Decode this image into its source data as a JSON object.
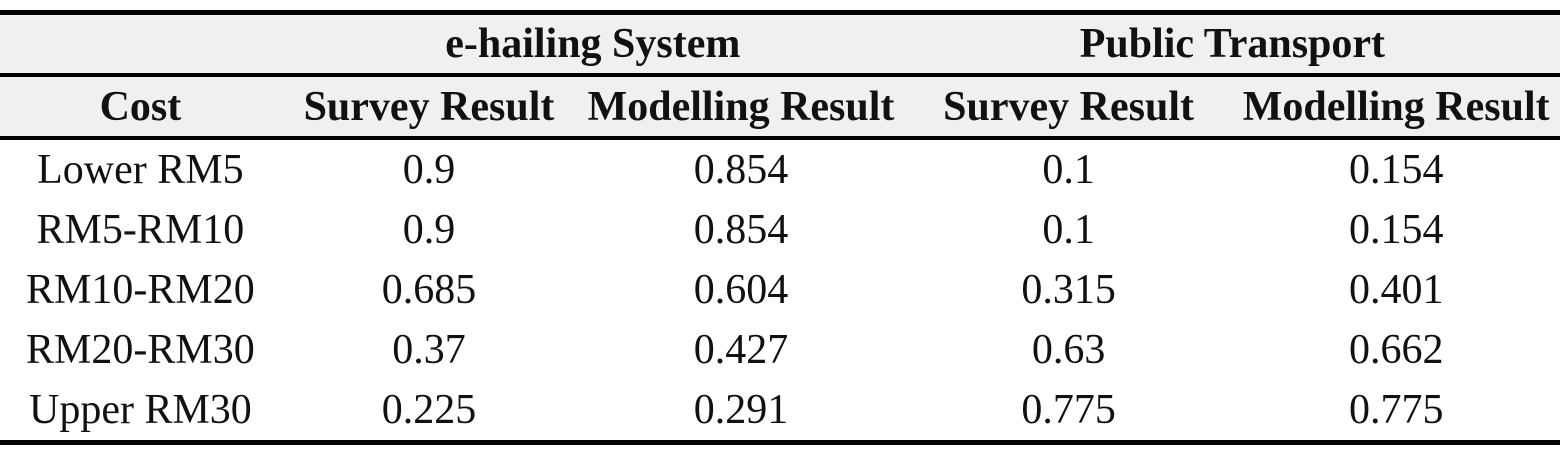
{
  "table": {
    "group_headers": {
      "empty": "",
      "ehailing": "e-hailing System",
      "public_transport": "Public Transport"
    },
    "column_headers": [
      "Cost",
      "Survey Result",
      "Modelling Result",
      "Survey Result",
      "Modelling Result"
    ],
    "rows": [
      [
        "Lower RM5",
        "0.9",
        "0.854",
        "0.1",
        "0.154"
      ],
      [
        "RM5-RM10",
        "0.9",
        "0.854",
        "0.1",
        "0.154"
      ],
      [
        "RM10-RM20",
        "0.685",
        "0.604",
        "0.315",
        "0.401"
      ],
      [
        "RM20-RM30",
        "0.37",
        "0.427",
        "0.63",
        "0.662"
      ],
      [
        "Upper RM30",
        "0.225",
        "0.291",
        "0.775",
        "0.775"
      ]
    ],
    "colors": {
      "header_bg": "#f0f0f0",
      "rule": "#000000",
      "text": "#111111",
      "page_bg": "#ffffff"
    }
  },
  "chart_data": {
    "type": "table",
    "title": "",
    "categories": [
      "Lower RM5",
      "RM5-RM10",
      "RM10-RM20",
      "RM20-RM30",
      "Upper RM30"
    ],
    "series": [
      {
        "name": "e-hailing System - Survey Result",
        "values": [
          0.9,
          0.9,
          0.685,
          0.37,
          0.225
        ]
      },
      {
        "name": "e-hailing System - Modelling Result",
        "values": [
          0.854,
          0.854,
          0.604,
          0.427,
          0.291
        ]
      },
      {
        "name": "Public Transport - Survey Result",
        "values": [
          0.1,
          0.1,
          0.315,
          0.63,
          0.775
        ]
      },
      {
        "name": "Public Transport - Modelling Result",
        "values": [
          0.154,
          0.154,
          0.401,
          0.662,
          0.775
        ]
      }
    ]
  }
}
